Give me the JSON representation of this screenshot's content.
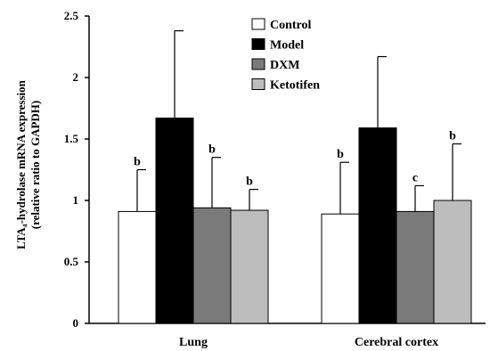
{
  "chart_data": {
    "type": "bar",
    "title": "",
    "xlabel": "",
    "ylabel_line1": "LTA₄-hydrolase mRNA expression",
    "ylabel_line2": "(relative ratio to GAPDH)",
    "categories": [
      "Lung",
      "Cerebral cortex"
    ],
    "ylim": [
      0,
      2.5
    ],
    "yticks": [
      "0",
      "0.5",
      "1",
      "1.5",
      "2",
      "2.5"
    ],
    "grid": false,
    "legend_position": "top-center",
    "series": [
      {
        "name": "Control",
        "color": "#ffffff",
        "values": [
          0.91,
          0.89
        ],
        "errors": [
          0.34,
          0.42
        ],
        "labels": [
          "b",
          "b"
        ]
      },
      {
        "name": "Model",
        "color": "#000000",
        "values": [
          1.67,
          1.59
        ],
        "errors": [
          0.71,
          0.58
        ],
        "labels": [
          "",
          ""
        ]
      },
      {
        "name": "DXM",
        "color": "#7a7a7a",
        "values": [
          0.94,
          0.91
        ],
        "errors": [
          0.41,
          0.21
        ],
        "labels": [
          "b",
          "c"
        ]
      },
      {
        "name": "Ketotifen",
        "color": "#bdbdbd",
        "values": [
          0.92,
          1.0
        ],
        "errors": [
          0.17,
          0.46
        ],
        "labels": [
          "b",
          "b"
        ]
      }
    ]
  }
}
